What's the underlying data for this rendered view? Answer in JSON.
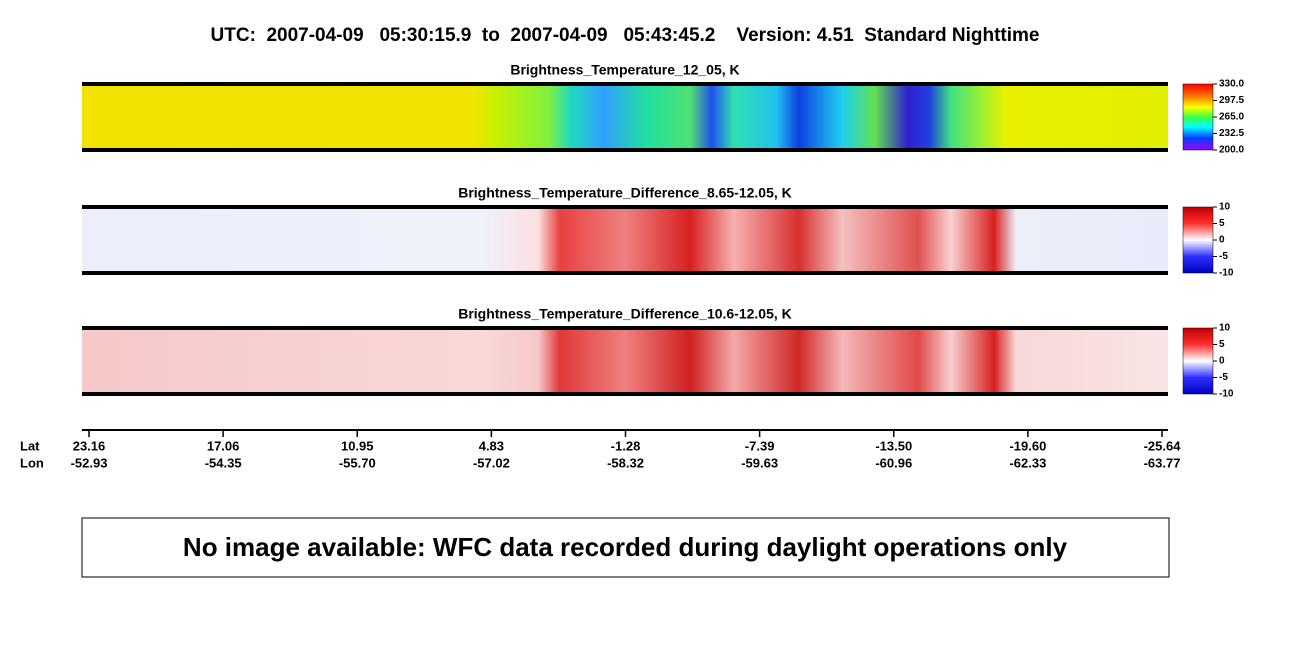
{
  "header": {
    "title": "UTC:  2007-04-09   05:30:15.9  to  2007-04-09   05:43:45.2    Version: 4.51  Standard Nighttime"
  },
  "panels": [
    {
      "title": "Brightness_Temperature_12_05, K",
      "colorbar": [
        "330.0",
        "297.5",
        "265.0",
        "232.5",
        "200.0"
      ]
    },
    {
      "title": "Brightness_Temperature_Difference_8.65-12.05, K",
      "colorbar": [
        "10",
        "5",
        "0",
        "-5",
        "-10"
      ]
    },
    {
      "title": "Brightness_Temperature_Difference_10.6-12.05, K",
      "colorbar": [
        "10",
        "5",
        "0",
        "-5",
        "-10"
      ]
    }
  ],
  "axis": {
    "row_labels": [
      "Lat",
      "Lon"
    ],
    "lat": [
      "23.16",
      "17.06",
      "10.95",
      "4.83",
      "-1.28",
      "-7.39",
      "-13.50",
      "-19.60",
      "-25.64"
    ],
    "lon": [
      "-52.93",
      "-54.35",
      "-55.70",
      "-57.02",
      "-58.32",
      "-59.63",
      "-60.96",
      "-62.33",
      "-63.77"
    ]
  },
  "notice": "No image available: WFC data recorded during daylight operations only"
}
